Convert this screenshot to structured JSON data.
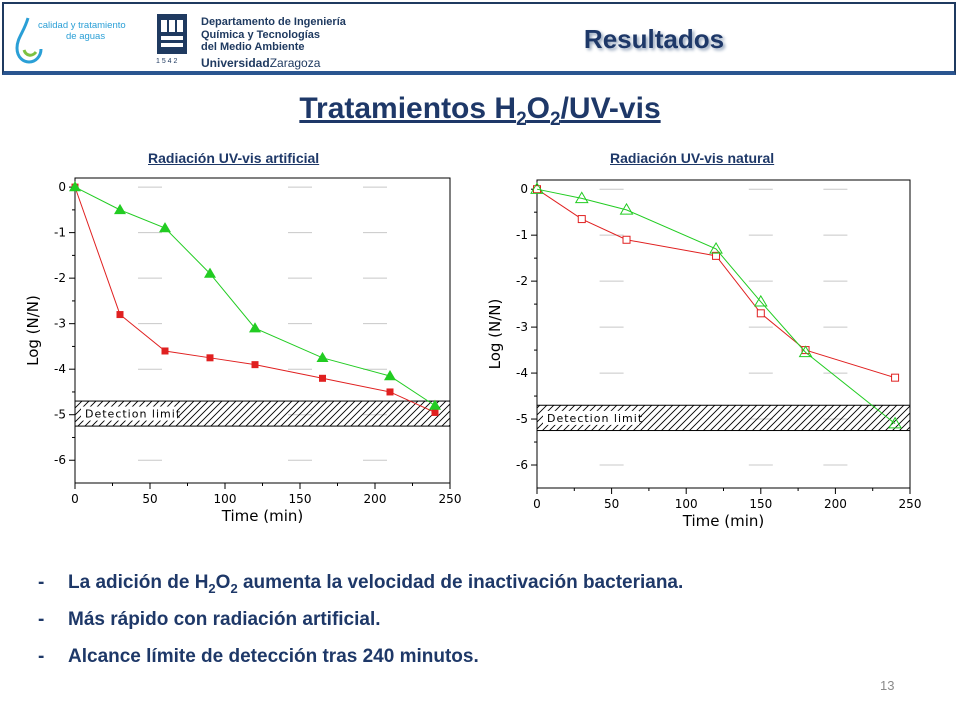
{
  "header": {
    "logo_calidad": {
      "line1": "calidad y tratamiento",
      "line2": "de aguas"
    },
    "logo_unizar": {
      "dept_line1": "Departamento de Ingeniería",
      "dept_line2": "Química y Tecnologías",
      "dept_line3": "del Medio Ambiente",
      "year": "1 5 4 2",
      "uni_bold": "Universidad",
      "uni_regular": "Zaragoza"
    },
    "section_title": "Resultados"
  },
  "title": {
    "prefix": "Tratamientos H",
    "sub1": "2",
    "mid": "O",
    "sub2": "2",
    "suffix": "/UV-vis"
  },
  "colors": {
    "title": "#1e3868",
    "series_a": "#e02020",
    "series_b": "#22cc22",
    "header_border": "#2a5590"
  },
  "chart_data": [
    {
      "type": "scatter",
      "title": "Radiación UV-vis artificial",
      "xlabel": "Time (min)",
      "ylabel": "Log (N/N)",
      "xlim": [
        0,
        250
      ],
      "ylim": [
        -6.5,
        0.2
      ],
      "xticks": [
        "0",
        "50",
        "100",
        "150",
        "200",
        "250"
      ],
      "yticks": [
        "0",
        "-1",
        "-2",
        "-3",
        "-4",
        "-5",
        "-6"
      ],
      "detection_limit": {
        "label": "Detection limit",
        "y_from": -5.25,
        "y_to": -4.7
      },
      "series": [
        {
          "color": "#e02020",
          "marker": "square-filled",
          "points": [
            [
              0,
              0
            ],
            [
              30,
              -2.8
            ],
            [
              60,
              -3.6
            ],
            [
              90,
              -3.75
            ],
            [
              120,
              -3.9
            ],
            [
              165,
              -4.2
            ],
            [
              210,
              -4.5
            ],
            [
              240,
              -4.95
            ]
          ]
        },
        {
          "color": "#22cc22",
          "marker": "triangle-filled",
          "points": [
            [
              0,
              0
            ],
            [
              30,
              -0.5
            ],
            [
              60,
              -0.9
            ],
            [
              90,
              -1.9
            ],
            [
              120,
              -3.1
            ],
            [
              165,
              -3.75
            ],
            [
              210,
              -4.15
            ],
            [
              240,
              -4.8
            ]
          ]
        }
      ]
    },
    {
      "type": "scatter",
      "title": "Radiación UV-vis natural",
      "xlabel": "Time (min)",
      "ylabel": "Log (N/N)",
      "xlim": [
        0,
        250
      ],
      "ylim": [
        -6.5,
        0.2
      ],
      "xticks": [
        "0",
        "50",
        "100",
        "150",
        "200",
        "250"
      ],
      "yticks": [
        "0",
        "-1",
        "-2",
        "-3",
        "-4",
        "-5",
        "-6"
      ],
      "detection_limit": {
        "label": "Detection limit",
        "y_from": -5.25,
        "y_to": -4.7
      },
      "series": [
        {
          "color": "#e02020",
          "marker": "square-open",
          "points": [
            [
              0,
              0
            ],
            [
              30,
              -0.65
            ],
            [
              60,
              -1.1
            ],
            [
              120,
              -1.45
            ],
            [
              150,
              -2.7
            ],
            [
              180,
              -3.5
            ],
            [
              240,
              -4.1
            ]
          ]
        },
        {
          "color": "#22cc22",
          "marker": "triangle-open",
          "points": [
            [
              0,
              0
            ],
            [
              30,
              -0.2
            ],
            [
              60,
              -0.45
            ],
            [
              120,
              -1.3
            ],
            [
              150,
              -2.45
            ],
            [
              180,
              -3.55
            ],
            [
              240,
              -5.1
            ]
          ]
        }
      ]
    }
  ],
  "bullets": [
    {
      "dash": "-",
      "parts": [
        "La adición de H",
        "2",
        "O",
        "2",
        " aumenta la velocidad de inactivación bacteriana."
      ]
    },
    {
      "dash": "-",
      "text": "Más rápido con radiación artificial."
    },
    {
      "dash": "-",
      "text": "Alcance límite de detección tras 240 minutos."
    }
  ],
  "page_number": "13"
}
